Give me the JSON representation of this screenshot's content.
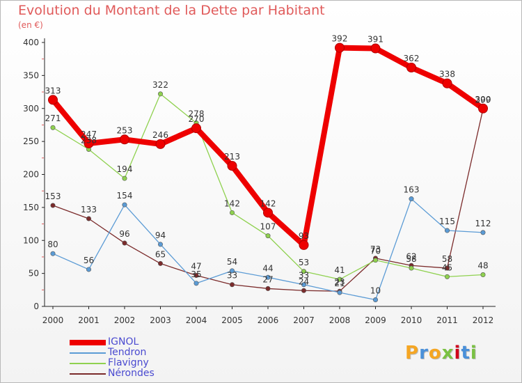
{
  "title": "Evolution du Montant de la Dette par Habitant",
  "subtitle": "(en €)",
  "logo_text": "Proxiti",
  "logo_colors": [
    "#f5a623",
    "#4a90d9",
    "#f5a623",
    "#7ac143",
    "#d0021b",
    "#4a90d9",
    "#7ac143"
  ],
  "chart_data": {
    "type": "line",
    "title": "Evolution du Montant de la Dette par Habitant",
    "subtitle": "(en €)",
    "x": [
      "2000",
      "2001",
      "2002",
      "2003",
      "2004",
      "2005",
      "2006",
      "2007",
      "2008",
      "2009",
      "2010",
      "2011",
      "2012"
    ],
    "ylim": [
      0,
      400
    ],
    "yticks": [
      0,
      50,
      100,
      150,
      200,
      250,
      300,
      350,
      400
    ],
    "grid": false,
    "legend_position": "bottom-left",
    "series": [
      {
        "name": "IGNOL",
        "color": "#ee0000",
        "values": [
          313,
          247,
          253,
          246,
          270,
          213,
          142,
          93,
          392,
          391,
          362,
          338,
          300
        ]
      },
      {
        "name": "Tendron",
        "color": "#5b9bd5",
        "values": [
          80,
          56,
          154,
          94,
          35,
          54,
          44,
          33,
          21,
          10,
          163,
          115,
          112
        ]
      },
      {
        "name": "Flavigny",
        "color": "#8fd14f",
        "values": [
          271,
          238,
          194,
          322,
          278,
          142,
          107,
          53,
          41,
          70,
          58,
          45,
          48
        ]
      },
      {
        "name": "Nérondes",
        "color": "#7b2b2b",
        "values": [
          153,
          133,
          96,
          65,
          47,
          33,
          27,
          24,
          23,
          73,
          62,
          58,
          299
        ]
      }
    ],
    "data_labels": [
      [
        313,
        247,
        253,
        246,
        270,
        213,
        142,
        93,
        392,
        391,
        362,
        338,
        300
      ],
      [
        80,
        56,
        154,
        94,
        35,
        54,
        44,
        33,
        21,
        10,
        163,
        115,
        112
      ],
      [
        271,
        238,
        194,
        322,
        278,
        142,
        107,
        53,
        41,
        70,
        58,
        45,
        48
      ],
      [
        153,
        133,
        96,
        65,
        47,
        33,
        27,
        24,
        23,
        73,
        62,
        58,
        299
      ]
    ]
  }
}
